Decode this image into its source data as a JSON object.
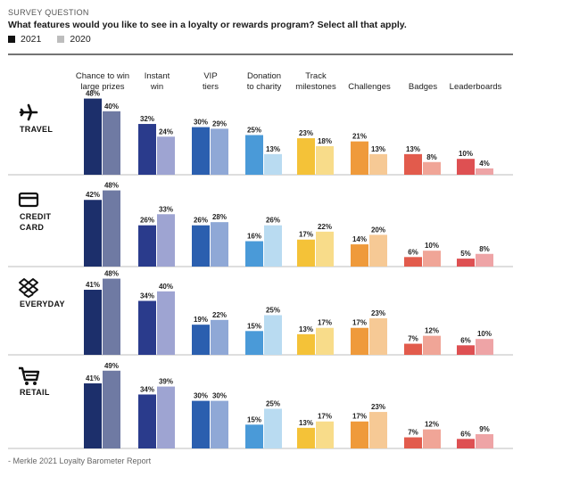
{
  "header": {
    "survey_label": "SURVEY QUESTION",
    "question": "What features would you like to see in a loyalty or rewards program?  Select all that apply."
  },
  "legend": [
    {
      "label": "2021",
      "color": "#111111"
    },
    {
      "label": "2020",
      "color": "#bdbdbd"
    }
  ],
  "source": "- Merkle 2021 Loyalty Barometer Report",
  "chart_data": {
    "type": "bar",
    "ylim": [
      0,
      50
    ],
    "categories": [
      [
        "Chance to win",
        "large prizes"
      ],
      [
        "Instant",
        "win"
      ],
      [
        "VIP",
        "tiers"
      ],
      [
        "Donation",
        "to charity"
      ],
      [
        "Track",
        "milestones"
      ],
      [
        "Challenges"
      ],
      [
        "Badges"
      ],
      [
        "Leaderboards"
      ]
    ],
    "category_colors": [
      [
        "#1c2f6b",
        "#6f7aa3"
      ],
      [
        "#2a3b8c",
        "#9ea4d2"
      ],
      [
        "#2b5faf",
        "#8fa8d6"
      ],
      [
        "#4a9ad8",
        "#b9dbf1"
      ],
      [
        "#f4c238",
        "#f8dc8a"
      ],
      [
        "#ef9a3b",
        "#f6c995"
      ],
      [
        "#e25b4c",
        "#f0a597"
      ],
      [
        "#de5052",
        "#eea4a6"
      ]
    ],
    "panels": [
      {
        "name": "TRAVEL",
        "icon": "airplane-icon",
        "series": [
          {
            "name": "2021",
            "values": [
              48,
              32,
              30,
              25,
              23,
              21,
              13,
              10
            ]
          },
          {
            "name": "2020",
            "values": [
              40,
              24,
              29,
              13,
              18,
              13,
              8,
              4
            ]
          }
        ]
      },
      {
        "name": "CREDIT CARD",
        "icon": "credit-card-icon",
        "series": [
          {
            "name": "2021",
            "values": [
              42,
              26,
              26,
              16,
              17,
              14,
              6,
              5
            ]
          },
          {
            "name": "2020",
            "values": [
              48,
              33,
              28,
              26,
              22,
              20,
              10,
              8
            ]
          }
        ]
      },
      {
        "name": "EVERYDAY",
        "icon": "dropbox-icon",
        "series": [
          {
            "name": "2021",
            "values": [
              41,
              34,
              19,
              15,
              13,
              17,
              7,
              6
            ]
          },
          {
            "name": "2020",
            "values": [
              48,
              40,
              22,
              25,
              17,
              23,
              12,
              10
            ]
          }
        ]
      },
      {
        "name": "RETAIL",
        "icon": "shopping-cart-icon",
        "series": [
          {
            "name": "2021",
            "values": [
              41,
              34,
              30,
              15,
              13,
              17,
              7,
              6
            ]
          },
          {
            "name": "2020",
            "values": [
              49,
              39,
              30,
              25,
              17,
              23,
              12,
              9
            ]
          }
        ]
      }
    ]
  }
}
